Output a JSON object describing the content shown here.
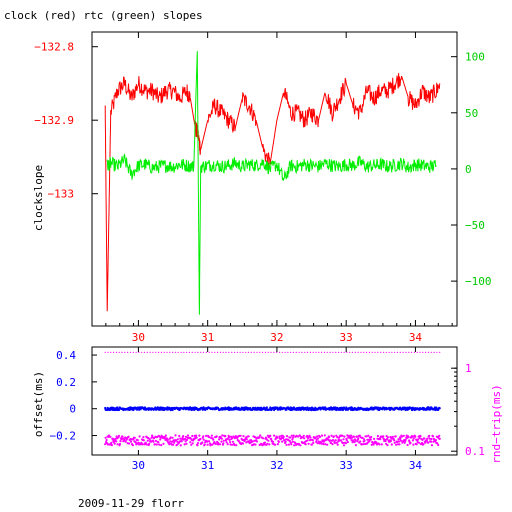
{
  "title": "clock (red) rtc (green) slopes",
  "footer": "2009-11-29 florr",
  "colors": {
    "clock": "#ff0000",
    "rtc": "#00ee00",
    "offset": "#0000ff",
    "rndtrip": "#ff00ff",
    "axis": "#000000"
  },
  "chart_data": [
    {
      "type": "line",
      "ylabel": "clockslope",
      "y2label": "",
      "xlim": [
        29.33,
        34.6
      ],
      "ylim": [
        -133.18,
        -132.78
      ],
      "y2lim": [
        -140,
        122
      ],
      "xticks": [
        30,
        31,
        32,
        33,
        34
      ],
      "xtick_labels": [
        "30",
        "31",
        "32",
        "33",
        "34"
      ],
      "yticks": [
        -132.8,
        -132.9,
        -133
      ],
      "ytick_labels": [
        "−132.8",
        "−132.9",
        "−133"
      ],
      "y2ticks": [
        100,
        50,
        0,
        -50,
        -100
      ],
      "y2tick_labels": [
        "100",
        "50",
        "0",
        "−50",
        "−100"
      ],
      "series": [
        {
          "color": "#ff0000",
          "axis": "left",
          "x": [
            29.52,
            29.55,
            29.6,
            29.7,
            29.8,
            29.9,
            30.0,
            30.1,
            30.2,
            30.3,
            30.4,
            30.5,
            30.6,
            30.7,
            30.75,
            30.82,
            30.86,
            30.9,
            31.0,
            31.1,
            31.2,
            31.3,
            31.4,
            31.5,
            31.6,
            31.7,
            31.8,
            31.9,
            32.0,
            32.1,
            32.2,
            32.3,
            32.4,
            32.5,
            32.6,
            32.7,
            32.8,
            32.9,
            33.0,
            33.1,
            33.2,
            33.3,
            33.4,
            33.5,
            33.6,
            33.7,
            33.8,
            33.9,
            34.0,
            34.1,
            34.2,
            34.3,
            34.35
          ],
          "y": [
            -132.88,
            -133.16,
            -132.89,
            -132.86,
            -132.85,
            -132.87,
            -132.85,
            -132.86,
            -132.86,
            -132.87,
            -132.86,
            -132.86,
            -132.87,
            -132.86,
            -132.87,
            -132.91,
            -132.92,
            -132.94,
            -132.9,
            -132.88,
            -132.89,
            -132.9,
            -132.91,
            -132.87,
            -132.88,
            -132.9,
            -132.94,
            -132.96,
            -132.9,
            -132.86,
            -132.89,
            -132.89,
            -132.9,
            -132.89,
            -132.9,
            -132.86,
            -132.89,
            -132.87,
            -132.85,
            -132.88,
            -132.89,
            -132.86,
            -132.87,
            -132.86,
            -132.86,
            -132.85,
            -132.84,
            -132.87,
            -132.88,
            -132.86,
            -132.87,
            -132.86,
            -132.85
          ]
        },
        {
          "color": "#00ee00",
          "axis": "right",
          "x": [
            29.55,
            29.6,
            29.7,
            29.8,
            29.9,
            30.0,
            30.1,
            30.2,
            30.3,
            30.4,
            30.5,
            30.6,
            30.7,
            30.8,
            30.85,
            30.88,
            30.9,
            31.0,
            31.1,
            31.2,
            31.3,
            31.4,
            31.5,
            31.6,
            31.7,
            31.8,
            31.9,
            32.0,
            32.1,
            32.2,
            32.3,
            32.4,
            32.5,
            32.6,
            32.7,
            32.8,
            32.9,
            33.0,
            33.1,
            33.2,
            33.3,
            33.4,
            33.5,
            33.6,
            33.7,
            33.8,
            33.9,
            34.0,
            34.1,
            34.2,
            34.3
          ],
          "y": [
            3,
            5,
            2,
            8,
            -5,
            3,
            4,
            1,
            2,
            3,
            2,
            4,
            3,
            2,
            105,
            -130,
            2,
            3,
            4,
            2,
            3,
            5,
            2,
            4,
            3,
            6,
            0,
            4,
            -10,
            3,
            2,
            4,
            3,
            2,
            5,
            3,
            2,
            4,
            3,
            6,
            2,
            3,
            4,
            2,
            3,
            5,
            1,
            4,
            3,
            2,
            3
          ]
        }
      ]
    },
    {
      "type": "scatter",
      "ylabel": "offset(ms)",
      "y2label": "rnd−trip(ms)",
      "xlim": [
        29.33,
        34.6
      ],
      "ylim": [
        -0.345,
        0.46
      ],
      "y2scale": "log",
      "y2lim": [
        0.09,
        1.8
      ],
      "xticks": [
        30,
        31,
        32,
        33,
        34
      ],
      "xtick_labels": [
        "30",
        "31",
        "32",
        "33",
        "34"
      ],
      "yticks": [
        0.4,
        0.2,
        0,
        -0.2
      ],
      "ytick_labels": [
        "0.4",
        "0.2",
        "0",
        "−0.2"
      ],
      "y2ticks": [
        1,
        0.1
      ],
      "y2tick_labels": [
        "1",
        "0.1"
      ],
      "series": [
        {
          "color": "#0000ff",
          "axis": "left",
          "band": [
            29.52,
            34.35
          ],
          "level": 0.0,
          "spread": 0.01
        },
        {
          "color": "#ff00ff",
          "axis": "right",
          "band": [
            29.52,
            34.35
          ],
          "level": 0.135,
          "spread": 0.01
        },
        {
          "color": "#ff00ff",
          "axis": "right",
          "band": [
            29.52,
            34.35
          ],
          "level": 1.55,
          "spread": 0.0
        }
      ]
    }
  ]
}
